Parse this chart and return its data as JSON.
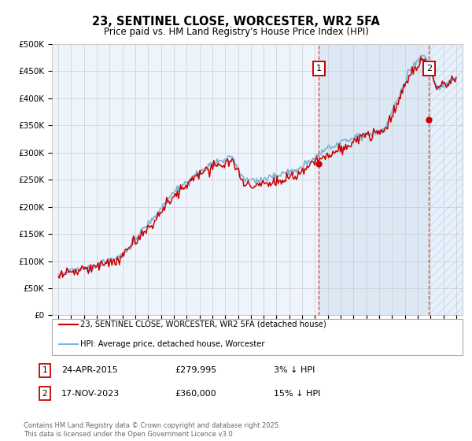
{
  "title": "23, SENTINEL CLOSE, WORCESTER, WR2 5FA",
  "subtitle": "Price paid vs. HM Land Registry's House Price Index (HPI)",
  "ylim": [
    0,
    500000
  ],
  "yticks": [
    0,
    50000,
    100000,
    150000,
    200000,
    250000,
    300000,
    350000,
    400000,
    450000,
    500000
  ],
  "ytick_labels": [
    "£0",
    "£50K",
    "£100K",
    "£150K",
    "£200K",
    "£250K",
    "£300K",
    "£350K",
    "£400K",
    "£450K",
    "£500K"
  ],
  "hpi_color": "#7ab4d8",
  "price_color": "#cc0000",
  "marker1_year": 2015.31,
  "marker1_price": 279995,
  "marker2_year": 2023.88,
  "marker2_price": 360000,
  "legend1_text": "23, SENTINEL CLOSE, WORCESTER, WR2 5FA (detached house)",
  "legend2_text": "HPI: Average price, detached house, Worcester",
  "note1_label": "1",
  "note1_date": "24-APR-2015",
  "note1_price": "£279,995",
  "note1_rel": "3% ↓ HPI",
  "note2_label": "2",
  "note2_date": "17-NOV-2023",
  "note2_price": "£360,000",
  "note2_rel": "15% ↓ HPI",
  "footer": "Contains HM Land Registry data © Crown copyright and database right 2025.\nThis data is licensed under the Open Government Licence v3.0.",
  "xlim_start": 1994.5,
  "xlim_end": 2026.5,
  "xticks": [
    1995,
    1996,
    1997,
    1998,
    1999,
    2000,
    2001,
    2002,
    2003,
    2004,
    2005,
    2006,
    2007,
    2008,
    2009,
    2010,
    2011,
    2012,
    2013,
    2014,
    2015,
    2016,
    2017,
    2018,
    2019,
    2020,
    2021,
    2022,
    2023,
    2024,
    2025,
    2026
  ],
  "bg_color": "#ffffff",
  "plot_bg_color": "#eef4fb",
  "grid_color": "#cccccc",
  "hatch_color": "#b0c8e0"
}
